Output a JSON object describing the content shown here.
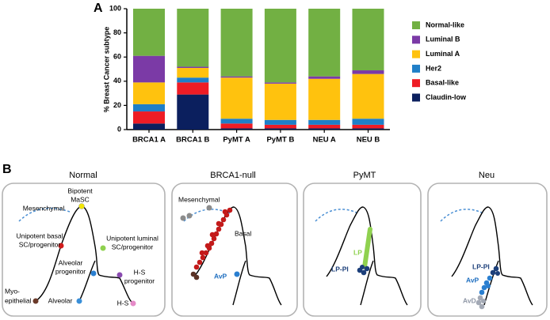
{
  "panel_labels": [
    "A",
    "B"
  ],
  "chart_data": {
    "type": "bar",
    "stacked": true,
    "ylabel": "% Breast Cancer subtype",
    "categories": [
      "BRCA1 A",
      "BRCA1 B",
      "PyMT A",
      "PyMT B",
      "NEU A",
      "NEU B"
    ],
    "series": [
      {
        "name": "Claudin-low",
        "color": "#0b1f5e",
        "values": [
          5,
          29,
          1,
          1,
          1,
          1
        ]
      },
      {
        "name": "Basal-like",
        "color": "#ee1c25",
        "values": [
          10,
          10,
          4,
          3,
          3,
          3
        ]
      },
      {
        "name": "Her2",
        "color": "#1f7fc8",
        "values": [
          6,
          4,
          4,
          4,
          4,
          5
        ]
      },
      {
        "name": "Luminal A",
        "color": "#ffc20e",
        "values": [
          18,
          8,
          34,
          30,
          34,
          37
        ]
      },
      {
        "name": "Luminal B",
        "color": "#7b3aa6",
        "values": [
          22,
          1,
          1,
          1,
          2,
          3
        ]
      },
      {
        "name": "Normal-like",
        "color": "#72b043",
        "values": [
          39,
          48,
          56,
          61,
          56,
          51
        ]
      }
    ],
    "ylim": [
      0,
      100
    ],
    "yticks": [
      0,
      20,
      40,
      60,
      80,
      100
    ],
    "legend": "right"
  },
  "diagrams": [
    {
      "title": "Normal",
      "labels": [
        {
          "lines": [
            "Bipotent",
            "MaSC"
          ]
        },
        {
          "lines": [
            "Mesenchymal"
          ]
        },
        {
          "lines": [
            "Unipotent basal",
            "SC/progenitor"
          ]
        },
        {
          "lines": [
            "Unipotent luminal",
            "SC/progenitor"
          ]
        },
        {
          "lines": [
            "Alveolar",
            "progenitor"
          ]
        },
        {
          "lines": [
            "H-S",
            "progenitor"
          ]
        },
        {
          "lines": [
            "Myo-",
            "epithelial"
          ]
        },
        {
          "lines": [
            "Alveolar"
          ]
        },
        {
          "lines": [
            "H-S"
          ]
        }
      ]
    },
    {
      "title": "BRCA1-null",
      "labels": [
        {
          "lines": [
            "Mesenchymal"
          ]
        },
        {
          "lines": [
            "Basal"
          ]
        },
        {
          "lines": [
            "AvP"
          ]
        }
      ]
    },
    {
      "title": "PyMT",
      "labels": [
        {
          "lines": [
            "LP"
          ]
        },
        {
          "lines": [
            "LP-PI"
          ]
        }
      ]
    },
    {
      "title": "Neu",
      "labels": [
        {
          "lines": [
            "LP-PI"
          ]
        },
        {
          "lines": [
            "AvP"
          ]
        },
        {
          "lines": [
            "AvD"
          ]
        }
      ]
    }
  ]
}
